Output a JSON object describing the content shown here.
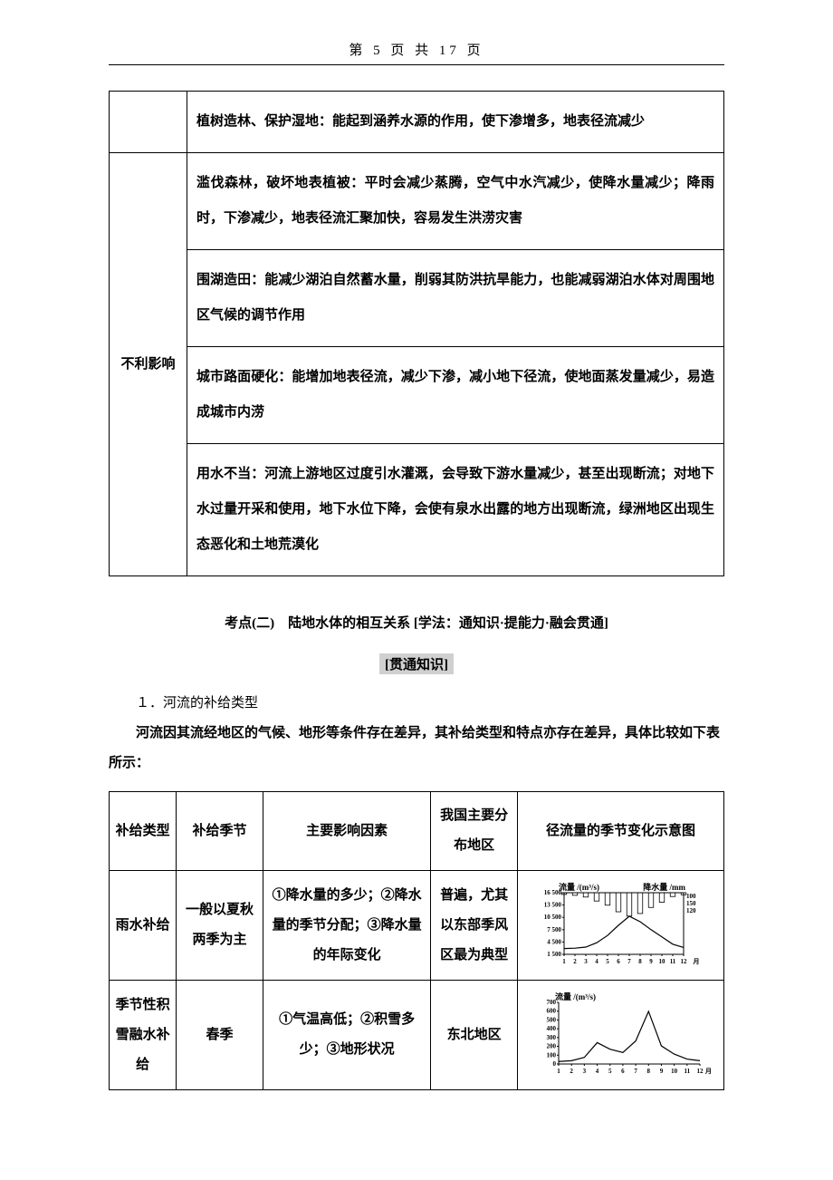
{
  "header": {
    "text": "第 5 页 共 17 页"
  },
  "table1": {
    "row_top": {
      "text": "植树造林、保护湿地：能起到涵养水源的作用，使下渗增多，地表径流减少"
    },
    "row_main": {
      "label": "不利影响",
      "paras": [
        "滥伐森林，破坏地表植被：平时会减少蒸腾，空气中水汽减少，使降水量减少；降雨时，下渗减少，地表径流汇聚加快，容易发生洪涝灾害",
        "围湖造田：能减少湖泊自然蓄水量，削弱其防洪抗旱能力，也能减弱湖泊水体对周围地区气候的调节作用",
        "城市路面硬化：能增加地表径流，减少下渗，减小地下径流，使地面蒸发量减少，易造成城市内涝",
        "用水不当：河流上游地区过度引水灌溉，会导致下游水量减少，甚至出现断流；对地下水过量开采和使用，地下水位下降，会使有泉水出露的地方出现断流，绿洲地区出现生态恶化和土地荒漠化"
      ]
    }
  },
  "section": {
    "title": "考点(二)　陆地水体的相互关系  [学法：通知识·提能力·融会贯通]",
    "sub": "[贯通知识]",
    "p1": "１．河流的补给类型",
    "p2": "河流因其流经地区的气候、地形等条件存在差异，其补给类型和特点亦存在差异，具体比较如下表所示："
  },
  "table2": {
    "head": {
      "c1": "补给类型",
      "c2": "补给季节",
      "c3": "主要影响因素",
      "c4": "我国主要分布地区",
      "c5": "径流量的季节变化示意图"
    },
    "rows": [
      {
        "c1": "雨水补给",
        "c2": "一般以夏秋两季为主",
        "c3": "①降水量的多少；②降水量的季节分配；③降水量的年际变化",
        "c4": "普遍，尤其以东部季风区最为典型"
      },
      {
        "c1": "季节性积雪融水补给",
        "c2": "春季",
        "c3": "①气温高低；②积雪多少；③地形状况",
        "c4": "东北地区"
      }
    ]
  },
  "chart1": {
    "type": "line",
    "left_axis_label": "流量 /(m³/s)",
    "right_axis_label": "降水量 /mm",
    "x_label_suffix": "月",
    "left_ticks": [
      "1 500",
      "4 500",
      "7 500",
      "10 500",
      "13 500",
      "16 500"
    ],
    "right_ticks": [
      "100",
      "150",
      "120"
    ],
    "x_ticks": [
      "1",
      "2",
      "3",
      "4",
      "5",
      "6",
      "7",
      "8",
      "9",
      "10",
      "11",
      "12"
    ],
    "flow_values": [
      1600,
      1700,
      2000,
      3200,
      5200,
      8000,
      10500,
      9000,
      6800,
      4800,
      2800,
      1900
    ],
    "precip_bars": [
      10,
      15,
      25,
      48,
      72,
      110,
      135,
      120,
      85,
      55,
      22,
      12
    ],
    "flow_ymax": 17000,
    "precip_ymax": 160,
    "line_color": "#000000",
    "bar_color": "#000000",
    "background": "#ffffff"
  },
  "chart2": {
    "type": "line",
    "left_axis_label": "流量 /(m³/s)",
    "x_label_suffix": "月",
    "left_ticks": [
      "0",
      "100",
      "200",
      "300",
      "400",
      "500",
      "600",
      "700"
    ],
    "x_ticks": [
      "1",
      "2",
      "3",
      "4",
      "5",
      "6",
      "7",
      "8",
      "9",
      "10",
      "11",
      "12"
    ],
    "flow_values": [
      30,
      40,
      80,
      260,
      180,
      140,
      280,
      640,
      220,
      120,
      60,
      40
    ],
    "flow_ymax": 750,
    "line_color": "#000000",
    "background": "#ffffff"
  }
}
